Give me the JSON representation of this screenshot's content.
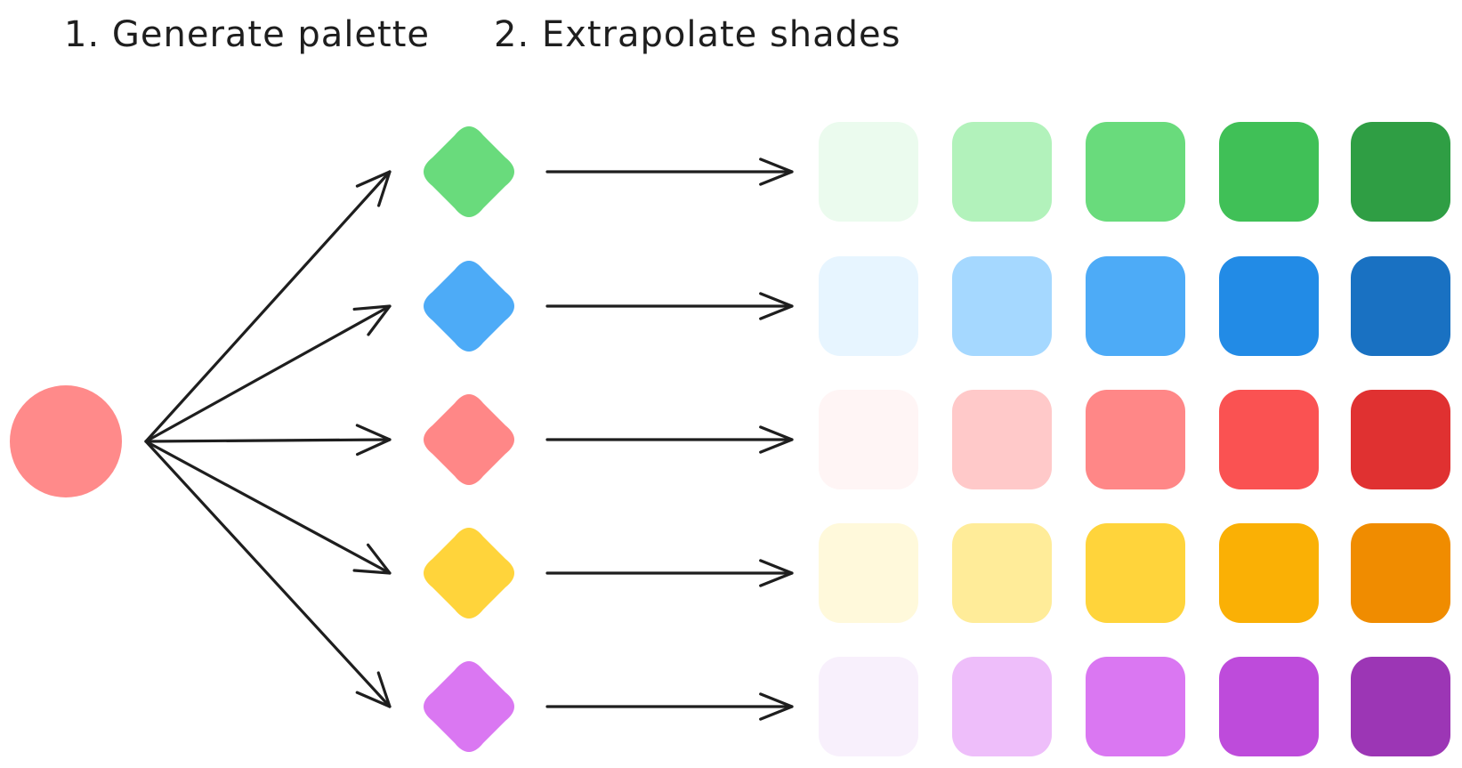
{
  "titles": {
    "step1": "1. Generate palette",
    "step2": "2. Extrapolate shades"
  },
  "base_color": "#ff8a8a",
  "palettes": [
    {
      "key": "green",
      "base": "#69db7c",
      "shades": [
        "#ebfbee",
        "#b2f2bb",
        "#69db7c",
        "#40c057",
        "#2f9e44"
      ]
    },
    {
      "key": "blue",
      "base": "#4dabf7",
      "shades": [
        "#e7f5ff",
        "#a5d8ff",
        "#4dabf7",
        "#228be6",
        "#1971c2"
      ]
    },
    {
      "key": "red",
      "base": "#ff8787",
      "shades": [
        "#fff5f5",
        "#ffc9c9",
        "#ff8787",
        "#fa5252",
        "#e03131"
      ]
    },
    {
      "key": "yellow",
      "base": "#ffd43b",
      "shades": [
        "#fff9db",
        "#ffec99",
        "#ffd43b",
        "#fab005",
        "#f08c00"
      ]
    },
    {
      "key": "violet",
      "base": "#da77f2",
      "shades": [
        "#f8f0fc",
        "#eebefa",
        "#da77f2",
        "#be4bdb",
        "#9c36b5"
      ]
    }
  ]
}
